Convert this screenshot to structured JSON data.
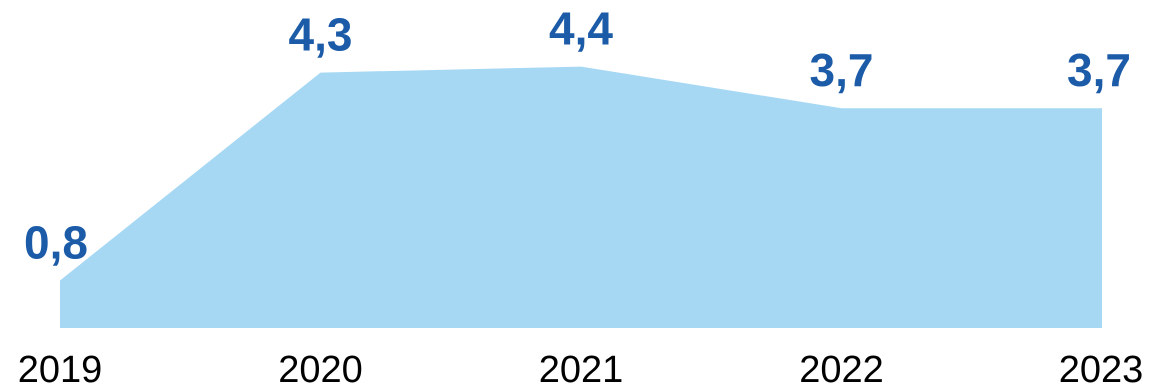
{
  "chart_data": {
    "type": "area",
    "categories": [
      "2019",
      "2020",
      "2021",
      "2022",
      "2023"
    ],
    "values": [
      0.8,
      4.3,
      4.4,
      3.7,
      3.7
    ],
    "data_labels": [
      "0,8",
      "4,3",
      "4,4",
      "3,7",
      "3,7"
    ],
    "title": "",
    "xlabel": "",
    "ylabel": "",
    "ylim": [
      0,
      5
    ],
    "grid": false,
    "legend": "none",
    "colors": {
      "fill": "#A6D8F4",
      "data_label": "#1B5BA8",
      "tick_label": "#000000"
    }
  }
}
